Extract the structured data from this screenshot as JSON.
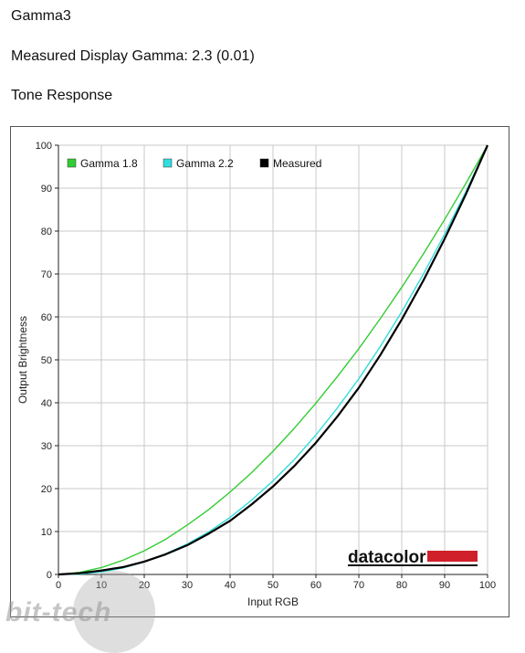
{
  "headings": {
    "title": "Gamma3",
    "measured_gamma": "Measured Display Gamma: 2.3 (0.01)",
    "section": "Tone Response"
  },
  "logo": {
    "text": "datacolor",
    "bar_color": "#d0202a"
  },
  "watermark": {
    "text": "bit-tech"
  },
  "colors": {
    "gamma18": "#33cc33",
    "gamma22": "#33dddd",
    "measured": "#000000",
    "grid": "#c8c8c8"
  },
  "chart_data": {
    "type": "line",
    "xlabel": "Input RGB",
    "ylabel": "Output Brightness",
    "xlim": [
      0,
      100
    ],
    "ylim": [
      0,
      100
    ],
    "x_ticks": [
      0,
      10,
      20,
      30,
      40,
      50,
      60,
      70,
      80,
      90,
      100
    ],
    "y_ticks": [
      0,
      10,
      20,
      30,
      40,
      50,
      60,
      70,
      80,
      90,
      100
    ],
    "grid": true,
    "legend_position": "top-left",
    "series": [
      {
        "name": "Gamma 1.8",
        "color": "#33cc33",
        "x": [
          0,
          5,
          10,
          15,
          20,
          25,
          30,
          35,
          40,
          45,
          50,
          55,
          60,
          65,
          70,
          75,
          80,
          85,
          90,
          95,
          100
        ],
        "y": [
          0,
          0.5,
          1.6,
          3.3,
          5.5,
          8.2,
          11.5,
          15.1,
          19.2,
          23.7,
          28.7,
          34.1,
          39.9,
          46.1,
          52.6,
          59.6,
          66.9,
          74.6,
          82.7,
          91.2,
          100
        ]
      },
      {
        "name": "Gamma 2.2",
        "color": "#33dddd",
        "x": [
          0,
          5,
          10,
          15,
          20,
          25,
          30,
          35,
          40,
          45,
          50,
          55,
          60,
          65,
          70,
          75,
          80,
          85,
          90,
          95,
          100
        ],
        "y": [
          0,
          0.1,
          0.6,
          1.5,
          2.9,
          4.8,
          7.1,
          9.9,
          13.3,
          17.3,
          21.8,
          26.8,
          32.5,
          38.8,
          45.6,
          53.1,
          61.2,
          69.9,
          79.3,
          89.3,
          100
        ]
      },
      {
        "name": "Measured",
        "color": "#000000",
        "x": [
          0,
          5,
          10,
          15,
          20,
          25,
          30,
          35,
          40,
          45,
          50,
          55,
          60,
          65,
          70,
          75,
          80,
          85,
          90,
          95,
          100
        ],
        "y": [
          0,
          0.3,
          0.9,
          1.7,
          3.0,
          4.7,
          6.8,
          9.5,
          12.5,
          16.3,
          20.5,
          25.3,
          30.7,
          36.8,
          43.5,
          51.1,
          59.4,
          68.4,
          78.2,
          88.7,
          100
        ]
      }
    ]
  }
}
